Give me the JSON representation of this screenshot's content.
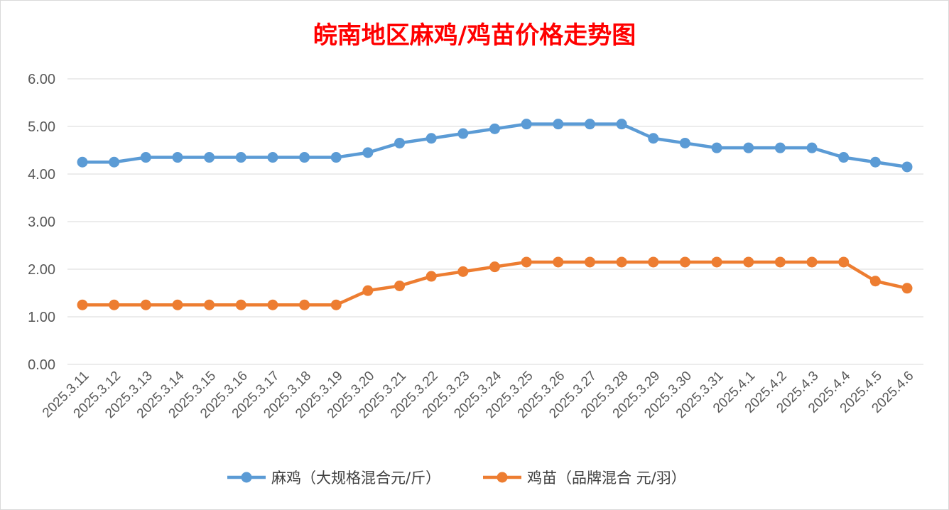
{
  "chart_data": {
    "type": "line",
    "title": "皖南地区麻鸡/鸡苗价格走势图",
    "title_color": "#ff0000",
    "ylim": [
      0,
      6
    ],
    "y_ticks": [
      "0.00",
      "1.00",
      "2.00",
      "3.00",
      "4.00",
      "5.00",
      "6.00"
    ],
    "grid": true,
    "legend_position": "bottom",
    "categories": [
      "2025.3.11",
      "2025.3.12",
      "2025.3.13",
      "2025.3.14",
      "2025.3.15",
      "2025.3.16",
      "2025.3.17",
      "2025.3.18",
      "2025.3.19",
      "2025.3.20",
      "2025.3.21",
      "2025.3.22",
      "2025.3.23",
      "2025.3.24",
      "2025.3.25",
      "2025.3.26",
      "2025.3.27",
      "2025.3.28",
      "2025.3.29",
      "2025.3.30",
      "2025.3.31",
      "2025.4.1",
      "2025.4.2",
      "2025.4.3",
      "2025.4.4",
      "2025.4.5",
      "2025.4.6"
    ],
    "series": [
      {
        "name": "麻鸡（大规格混合元/斤）",
        "color": "#5b9bd5",
        "values": [
          4.25,
          4.25,
          4.35,
          4.35,
          4.35,
          4.35,
          4.35,
          4.35,
          4.35,
          4.45,
          4.65,
          4.75,
          4.85,
          4.95,
          5.05,
          5.05,
          5.05,
          5.05,
          4.75,
          4.65,
          4.55,
          4.55,
          4.55,
          4.55,
          4.35,
          4.25,
          4.15
        ]
      },
      {
        "name": "鸡苗（品牌混合 元/羽）",
        "color": "#ed7d31",
        "values": [
          1.25,
          1.25,
          1.25,
          1.25,
          1.25,
          1.25,
          1.25,
          1.25,
          1.25,
          1.55,
          1.65,
          1.85,
          1.95,
          2.05,
          2.15,
          2.15,
          2.15,
          2.15,
          2.15,
          2.15,
          2.15,
          2.15,
          2.15,
          2.15,
          2.15,
          1.75,
          1.6
        ]
      }
    ]
  }
}
